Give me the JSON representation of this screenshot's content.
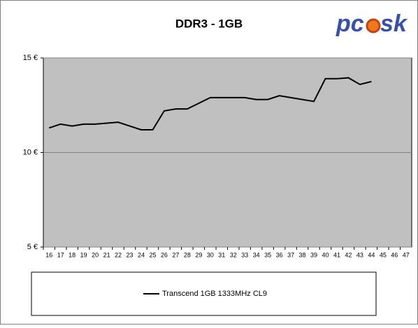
{
  "chart_data": {
    "type": "line",
    "title": "DDR3 - 1GB",
    "logo": {
      "left": "pc",
      "right": "sk"
    },
    "categories": [
      "16",
      "17",
      "18",
      "19",
      "20",
      "21",
      "22",
      "23",
      "24",
      "25",
      "26",
      "27",
      "28",
      "29",
      "30",
      "31",
      "32",
      "33",
      "34",
      "35",
      "36",
      "37",
      "38",
      "39",
      "40",
      "41",
      "42",
      "43",
      "44",
      "45",
      "46",
      "47"
    ],
    "series": [
      {
        "name": "Transcend 1GB 1333MHz CL9",
        "color": "#000000",
        "values": [
          11.3,
          11.5,
          11.4,
          11.5,
          11.5,
          11.55,
          11.6,
          11.4,
          11.2,
          11.2,
          12.2,
          12.3,
          12.3,
          12.6,
          12.9,
          12.9,
          12.9,
          12.9,
          12.8,
          12.8,
          13.0,
          12.9,
          12.8,
          12.7,
          13.9,
          13.9,
          13.95,
          13.6,
          13.75,
          null,
          null,
          null
        ]
      }
    ],
    "ylim": [
      5,
      15
    ],
    "yticks": [
      {
        "value": 5,
        "label": "5 €"
      },
      {
        "value": 10,
        "label": "10 €"
      },
      {
        "value": 15,
        "label": "15 €"
      }
    ],
    "grid": true
  }
}
